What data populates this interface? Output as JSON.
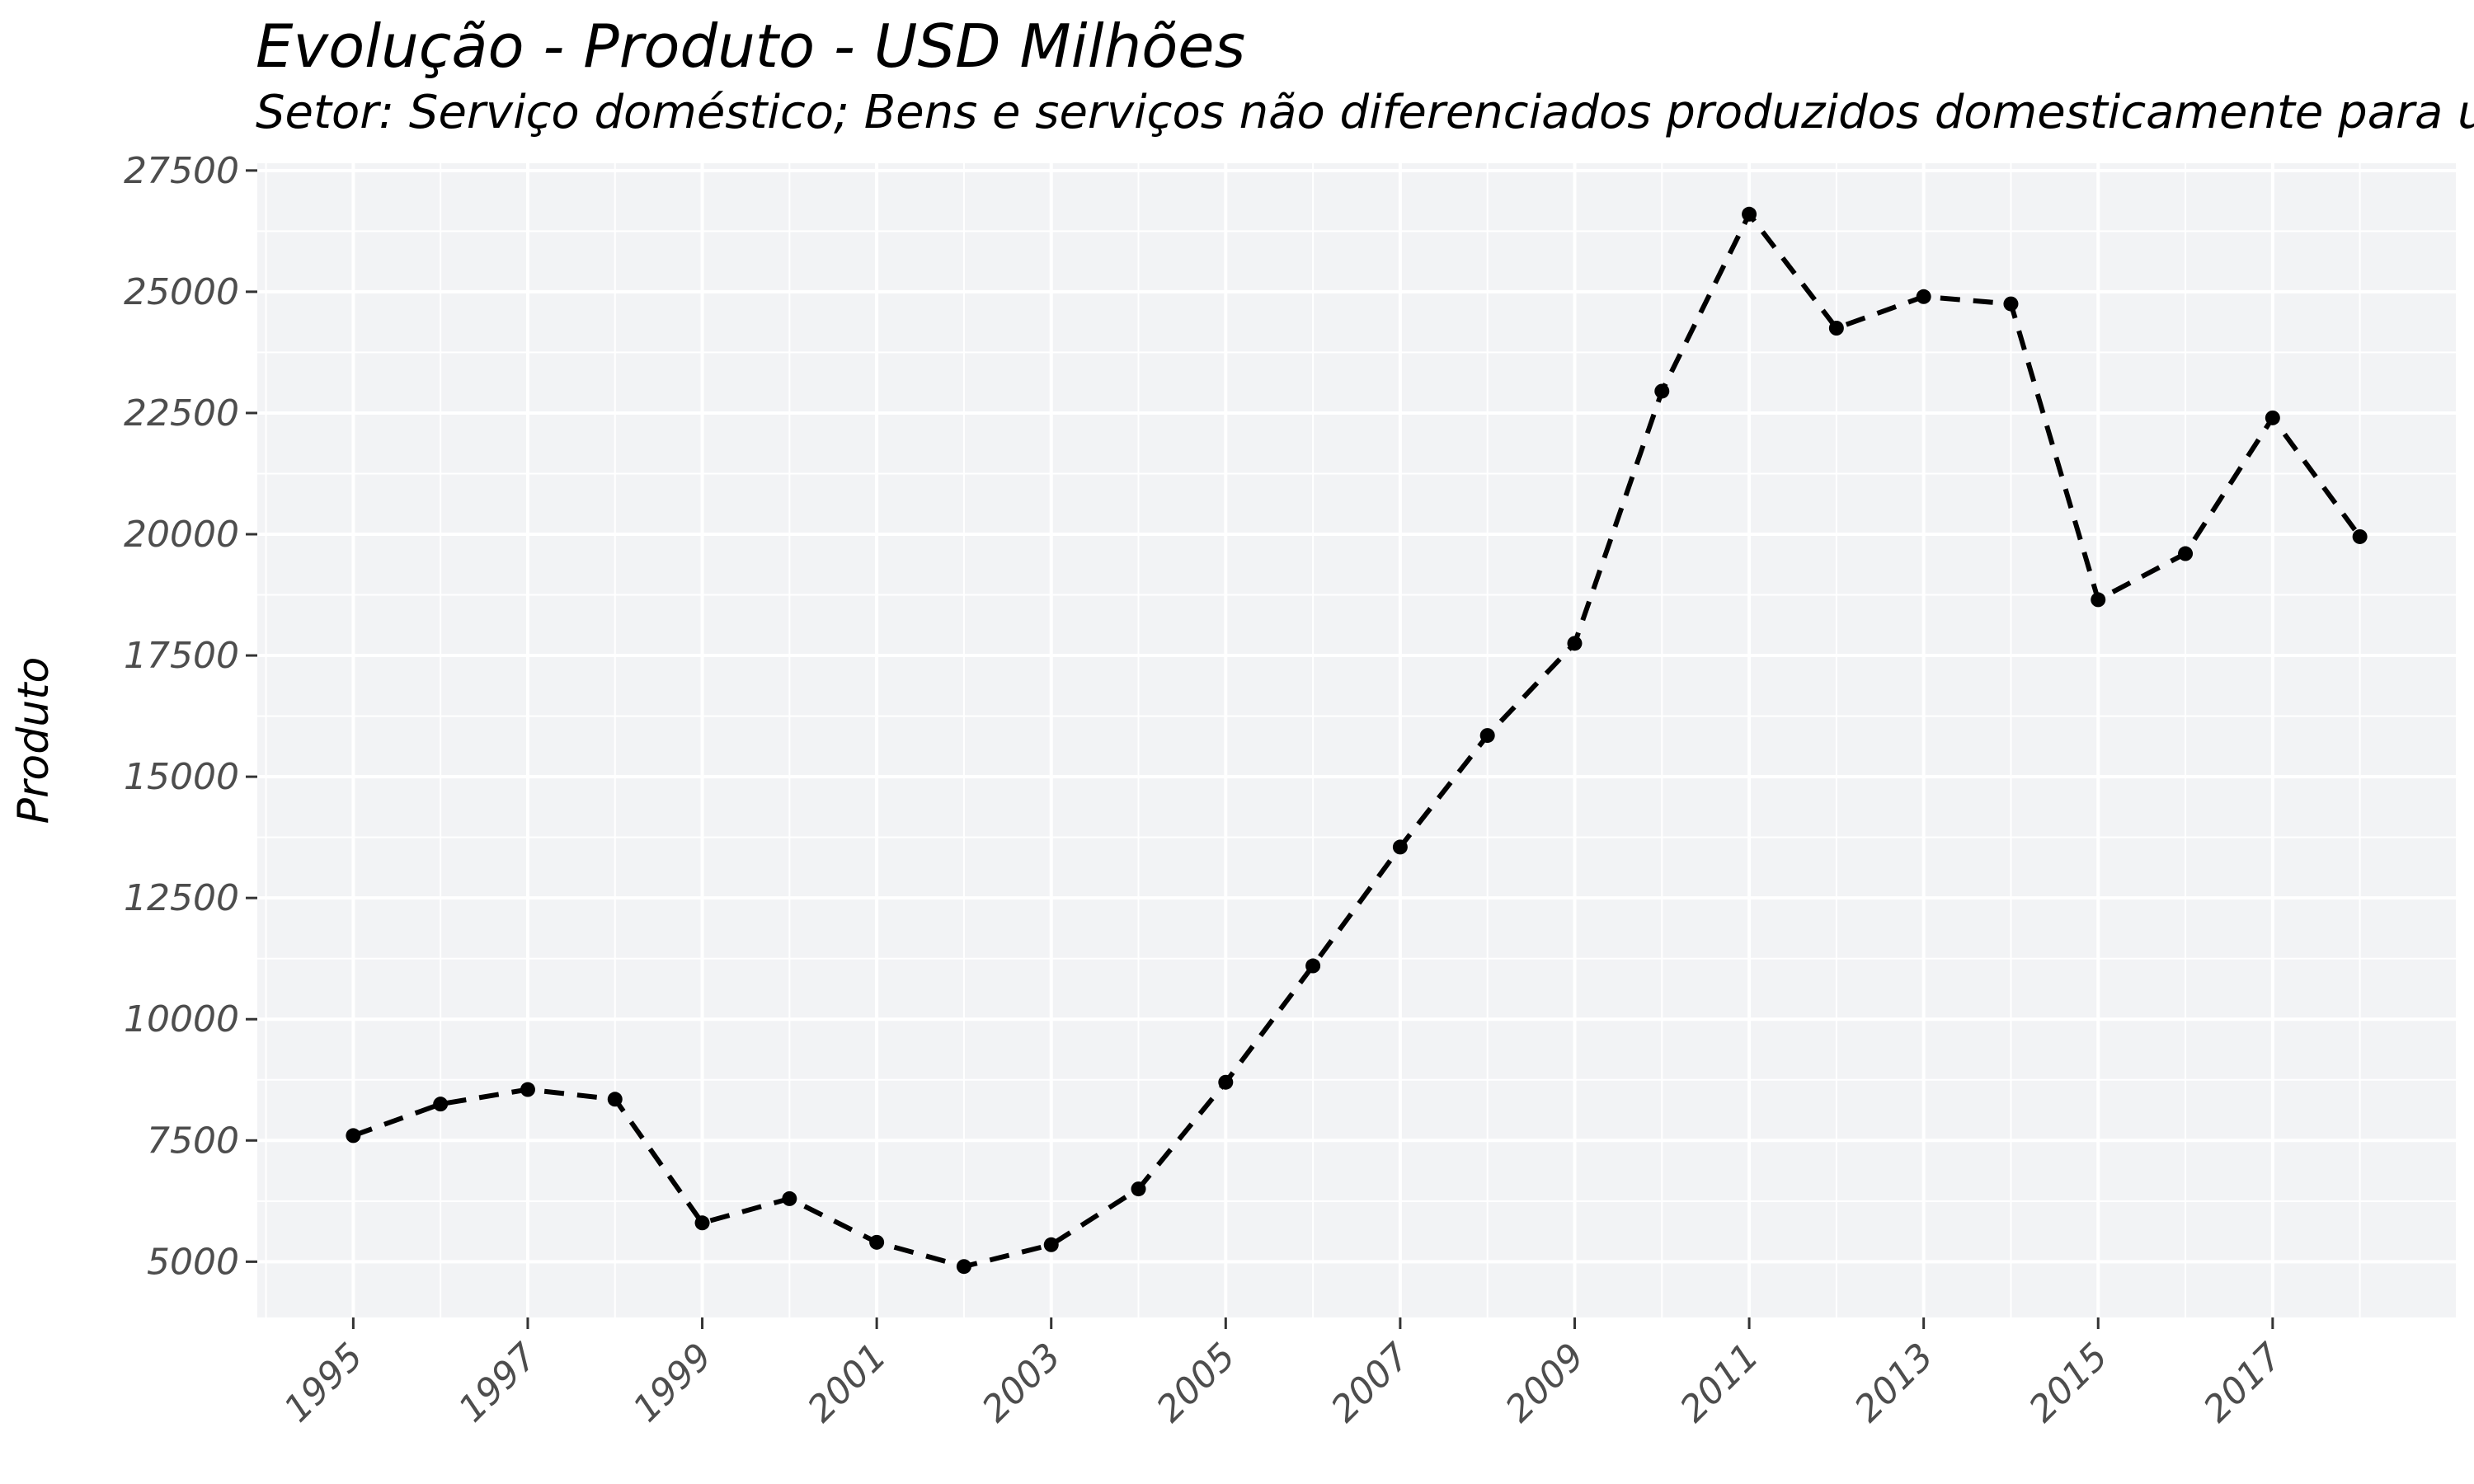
{
  "chart_data": {
    "type": "line",
    "title": "Evolução - Produto - USD Milhões",
    "subtitle": "Setor: Serviço doméstico; Bens e serviços não diferenciados produzidos domesticamente para u",
    "xlabel": "",
    "ylabel": "Produto",
    "x": [
      1995,
      1996,
      1997,
      1998,
      1999,
      2000,
      2001,
      2002,
      2003,
      2004,
      2005,
      2006,
      2007,
      2008,
      2009,
      2010,
      2011,
      2012,
      2013,
      2014,
      2015,
      2016,
      2017,
      2018
    ],
    "values": [
      7600,
      8250,
      8550,
      8350,
      5800,
      6300,
      5400,
      4900,
      5350,
      6500,
      8700,
      11100,
      13550,
      15850,
      17750,
      22950,
      26600,
      24250,
      24900,
      24750,
      18650,
      19600,
      22400,
      19950
    ],
    "xticks": [
      "1995",
      "1997",
      "1999",
      "2001",
      "2003",
      "2005",
      "2007",
      "2009",
      "2011",
      "2013",
      "2015",
      "2017"
    ],
    "yticks": [
      "5000",
      "7500",
      "10000",
      "12500",
      "15000",
      "17500",
      "20000",
      "22500",
      "25000",
      "27500"
    ],
    "xlim": [
      1993.9,
      2019.1
    ],
    "ylim": [
      3850,
      27650
    ],
    "grid": true,
    "line_style": "dashed",
    "line_color": "#000000",
    "panel_color": "#f2f3f5"
  }
}
